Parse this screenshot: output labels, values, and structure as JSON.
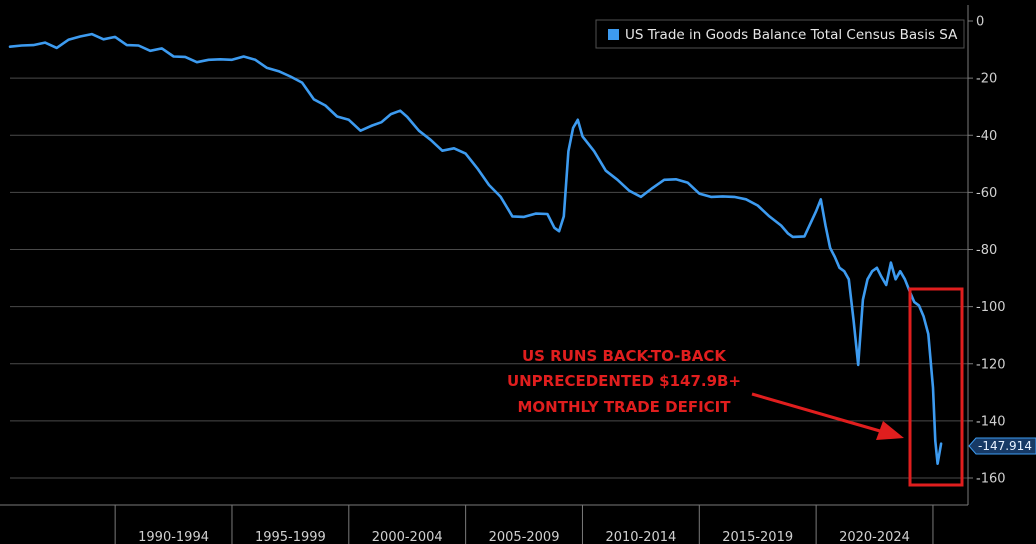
{
  "chart_data": {
    "type": "line",
    "title": "",
    "xlabel": "",
    "ylabel": "",
    "ylim": [
      -165,
      0
    ],
    "y_ticks": [
      0,
      -20,
      -40,
      -60,
      -80,
      -100,
      -120,
      -140,
      -160
    ],
    "y_tick_labels": [
      "0",
      "-20",
      "-40",
      "-60",
      "-80",
      "-100",
      "-120",
      "-140",
      "-160"
    ],
    "x_range": [
      1985.5,
      2026.5
    ],
    "x_sections": [
      {
        "label": "1990-1994",
        "start": 1990,
        "end": 1995
      },
      {
        "label": "1995-1999",
        "start": 1995,
        "end": 2000
      },
      {
        "label": "2000-2004",
        "start": 2000,
        "end": 2005
      },
      {
        "label": "2005-2009",
        "start": 2005,
        "end": 2010
      },
      {
        "label": "2010-2014",
        "start": 2010,
        "end": 2015
      },
      {
        "label": "2015-2019",
        "start": 2015,
        "end": 2020
      },
      {
        "label": "2020-2024",
        "start": 2020,
        "end": 2025
      }
    ],
    "grid": true,
    "legend": {
      "position": "top-right"
    },
    "series": [
      {
        "name": "US Trade in Goods Balance Total Census Basis SA",
        "color": "#3d9bf0",
        "x": [
          1985.5,
          1986.0,
          1986.5,
          1987.0,
          1987.5,
          1988.0,
          1988.5,
          1989.0,
          1989.5,
          1990.0,
          1990.5,
          1991.0,
          1991.5,
          1992.0,
          1992.5,
          1993.0,
          1993.5,
          1994.0,
          1994.5,
          1995.0,
          1995.5,
          1996.0,
          1996.5,
          1997.0,
          1997.5,
          1998.0,
          1998.5,
          1999.0,
          1999.5,
          2000.0,
          2000.5,
          2001.0,
          2001.4,
          2001.8,
          2002.2,
          2002.5,
          2003.0,
          2003.5,
          2004.0,
          2004.5,
          2005.0,
          2005.5,
          2006.0,
          2006.5,
          2007.0,
          2007.5,
          2008.0,
          2008.5,
          2008.8,
          2009.0,
          2009.2,
          2009.4,
          2009.6,
          2009.8,
          2010.0,
          2010.5,
          2011.0,
          2011.5,
          2012.0,
          2012.5,
          2013.0,
          2013.5,
          2014.0,
          2014.5,
          2015.0,
          2015.5,
          2016.0,
          2016.5,
          2017.0,
          2017.5,
          2018.0,
          2018.5,
          2018.8,
          2019.0,
          2019.5,
          2020.0,
          2020.2,
          2020.4,
          2020.6,
          2020.8,
          2021.0,
          2021.2,
          2021.4,
          2021.6,
          2021.8,
          2022.0,
          2022.2,
          2022.4,
          2022.6,
          2022.8,
          2023.0,
          2023.2,
          2023.4,
          2023.6,
          2023.8,
          2024.0,
          2024.2,
          2024.4,
          2024.6,
          2024.8,
          2025.0,
          2025.1,
          2025.2,
          2025.35
        ],
        "values": [
          -9,
          -9,
          -8,
          -8,
          -9,
          -7,
          -5,
          -5,
          -6,
          -6,
          -8,
          -9,
          -10,
          -10,
          -12,
          -13,
          -14,
          -14,
          -13,
          -14,
          -12,
          -14,
          -16,
          -18,
          -19,
          -22,
          -27,
          -30,
          -33,
          -35,
          -38,
          -37,
          -35,
          -33,
          -31,
          -34,
          -38,
          -42,
          -45,
          -45,
          -46,
          -52,
          -57,
          -62,
          -68,
          -69,
          -67,
          -68,
          -72,
          -74,
          -68,
          -46,
          -37,
          -35,
          -40,
          -46,
          -52,
          -56,
          -59,
          -62,
          -58,
          -56,
          -55,
          -57,
          -60,
          -62,
          -61,
          -62,
          -62,
          -65,
          -68,
          -72,
          -74,
          -76,
          -75,
          -67,
          -62,
          -72,
          -79,
          -83,
          -86,
          -88,
          -90,
          -105,
          -120,
          -98,
          -90,
          -88,
          -86,
          -90,
          -92,
          -85,
          -90,
          -88,
          -90,
          -95,
          -98,
          -100,
          -103,
          -110,
          -128,
          -147,
          -155,
          -148
        ]
      }
    ],
    "last_value_label": "-147.914",
    "annotation": {
      "lines": [
        "US RUNS BACK-TO-BACK",
        "UNPRECEDENTED $147.9B+",
        "MONTHLY TRADE DEFICIT"
      ],
      "color": "#e01e1e"
    }
  }
}
